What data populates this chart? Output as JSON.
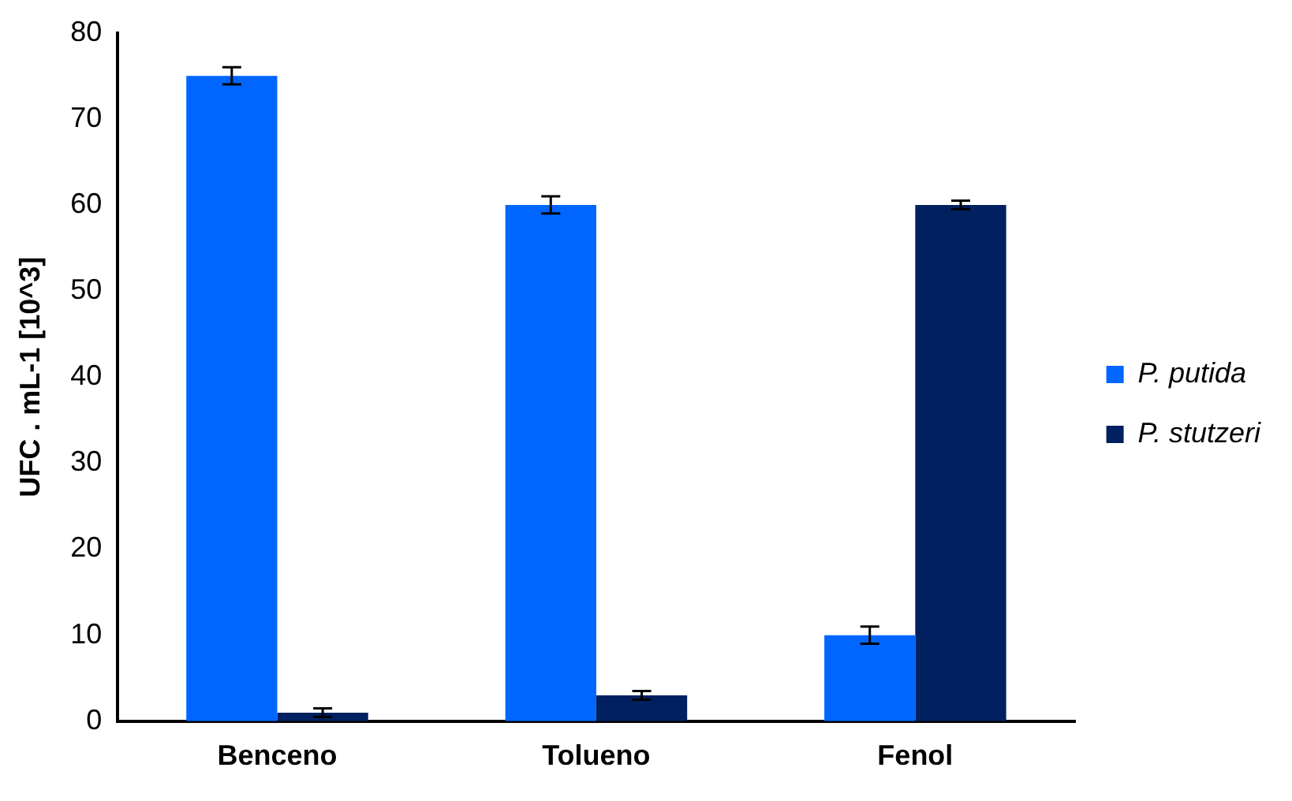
{
  "chart_data": {
    "type": "bar",
    "ylabel": "UFC . mL-1 [10^3]",
    "categories": [
      "Benceno",
      "Tolueno",
      "Fenol"
    ],
    "series": [
      {
        "name": "P. putida",
        "color": "#0066ff",
        "values": [
          75,
          60,
          10
        ],
        "errors": [
          1,
          1,
          1
        ]
      },
      {
        "name": "P. stutzeri",
        "color": "#002060",
        "values": [
          1,
          3,
          60
        ],
        "errors": [
          0.5,
          0.5,
          0.5
        ]
      }
    ],
    "ylim": [
      0,
      80
    ],
    "yticks": [
      0,
      10,
      20,
      30,
      40,
      50,
      60,
      70,
      80
    ],
    "grid": false,
    "legend": "right"
  }
}
